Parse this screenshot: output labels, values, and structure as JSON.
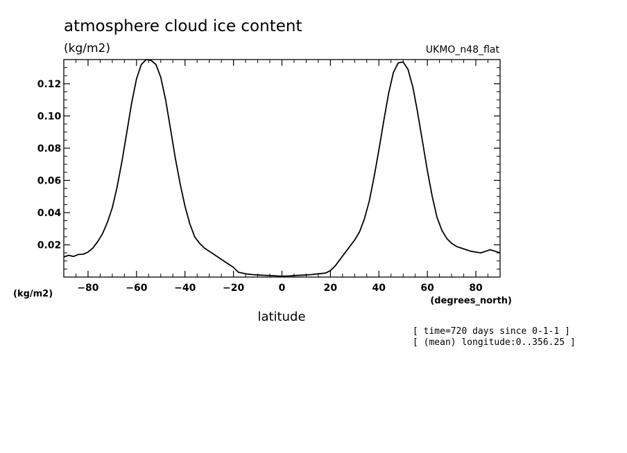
{
  "chart_data": {
    "type": "line",
    "title": "atmosphere cloud ice content",
    "units_label": "(kg/m2)",
    "model_label": "UKMO_n48_flat",
    "y_axis_units": "(kg/m2)",
    "x_axis_units": "(degrees_north)",
    "xlabel": "latitude",
    "notes": [
      "[ time=720 days since 0-1-1 ]",
      "[ (mean) longitude:0..356.25 ]"
    ],
    "xlim": [
      -90,
      90
    ],
    "ylim": [
      0,
      0.135
    ],
    "x_ticks": [
      -80,
      -60,
      -40,
      -20,
      0,
      20,
      40,
      60,
      80
    ],
    "x_tick_labels": [
      "−80",
      "−60",
      "−40",
      "−20",
      "0",
      "20",
      "40",
      "60",
      "80"
    ],
    "y_ticks": [
      0.02,
      0.04,
      0.06,
      0.08,
      0.1,
      0.12
    ],
    "y_tick_labels": [
      "0.02",
      "0.04",
      "0.06",
      "0.08",
      "0.10",
      "0.12"
    ],
    "grid": false,
    "series": [
      {
        "x": [
          -90,
          -88,
          -86,
          -84,
          -82,
          -80,
          -78,
          -76,
          -74,
          -72,
          -70,
          -68,
          -66,
          -64,
          -62,
          -60,
          -58,
          -56,
          -54,
          -52,
          -50,
          -48,
          -46,
          -44,
          -42,
          -40,
          -38,
          -36,
          -34,
          -32,
          -30,
          -28,
          -26,
          -24,
          -22,
          -20,
          -18,
          -15,
          -12,
          -9,
          -6,
          -3,
          0,
          3,
          6,
          9,
          12,
          15,
          18,
          20,
          22,
          24,
          26,
          28,
          30,
          32,
          34,
          36,
          38,
          40,
          42,
          44,
          46,
          48,
          50,
          52,
          54,
          56,
          58,
          60,
          62,
          64,
          66,
          68,
          70,
          72,
          74,
          76,
          78,
          80,
          82,
          84,
          86,
          88,
          90
        ],
        "values": [
          0.0125,
          0.0135,
          0.0128,
          0.014,
          0.0142,
          0.0155,
          0.018,
          0.022,
          0.027,
          0.034,
          0.043,
          0.056,
          0.072,
          0.09,
          0.108,
          0.123,
          0.132,
          0.135,
          0.1345,
          0.132,
          0.124,
          0.11,
          0.092,
          0.074,
          0.058,
          0.044,
          0.033,
          0.025,
          0.021,
          0.018,
          0.016,
          0.014,
          0.012,
          0.01,
          0.008,
          0.006,
          0.003,
          0.002,
          0.0015,
          0.0012,
          0.001,
          0.0008,
          0.0005,
          0.0007,
          0.001,
          0.0012,
          0.0015,
          0.002,
          0.0025,
          0.004,
          0.007,
          0.011,
          0.015,
          0.019,
          0.023,
          0.028,
          0.036,
          0.047,
          0.062,
          0.079,
          0.097,
          0.114,
          0.127,
          0.133,
          0.1335,
          0.129,
          0.118,
          0.102,
          0.084,
          0.066,
          0.05,
          0.037,
          0.029,
          0.024,
          0.021,
          0.019,
          0.018,
          0.017,
          0.016,
          0.0155,
          0.015,
          0.016,
          0.017,
          0.016,
          0.015
        ]
      }
    ]
  }
}
